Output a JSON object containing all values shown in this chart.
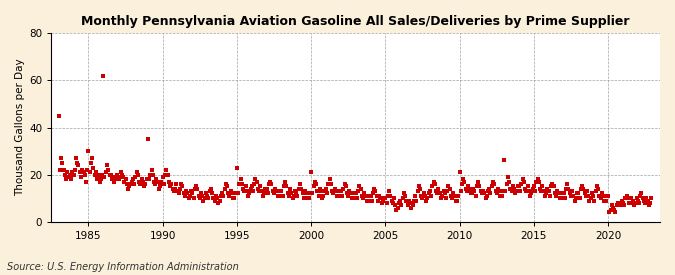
{
  "title": "Monthly Pennsylvania Aviation Gasoline All Sales/Deliveries by Prime Supplier",
  "ylabel": "Thousand Gallons per Day",
  "source": "Source: U.S. Energy Information Administration",
  "background_color": "#FAF0DC",
  "plot_bg_color": "#FFFFFF",
  "marker_color": "#CC0000",
  "xlim": [
    1982.5,
    2023.5
  ],
  "ylim": [
    0,
    80
  ],
  "yticks": [
    0,
    20,
    40,
    60,
    80
  ],
  "xticks": [
    1985,
    1990,
    1995,
    2000,
    2005,
    2010,
    2015,
    2020
  ],
  "x_values": [
    1983.0,
    1983.08,
    1983.17,
    1983.25,
    1983.33,
    1983.42,
    1983.5,
    1983.58,
    1983.67,
    1983.75,
    1983.83,
    1983.92,
    1984.0,
    1984.08,
    1984.17,
    1984.25,
    1984.33,
    1984.42,
    1984.5,
    1984.58,
    1984.67,
    1984.75,
    1984.83,
    1984.92,
    1985.0,
    1985.08,
    1985.17,
    1985.25,
    1985.33,
    1985.42,
    1985.5,
    1985.58,
    1985.67,
    1985.75,
    1985.83,
    1985.92,
    1986.0,
    1986.08,
    1986.17,
    1986.25,
    1986.33,
    1986.42,
    1986.5,
    1986.58,
    1986.67,
    1986.75,
    1986.83,
    1986.92,
    1987.0,
    1987.08,
    1987.17,
    1987.25,
    1987.33,
    1987.42,
    1987.5,
    1987.58,
    1987.67,
    1987.75,
    1987.83,
    1987.92,
    1988.0,
    1988.08,
    1988.17,
    1988.25,
    1988.33,
    1988.42,
    1988.5,
    1988.58,
    1988.67,
    1988.75,
    1988.83,
    1988.92,
    1989.0,
    1989.08,
    1989.17,
    1989.25,
    1989.33,
    1989.42,
    1989.5,
    1989.58,
    1989.67,
    1989.75,
    1989.83,
    1989.92,
    1990.0,
    1990.08,
    1990.17,
    1990.25,
    1990.33,
    1990.42,
    1990.5,
    1990.58,
    1990.67,
    1990.75,
    1990.83,
    1990.92,
    1991.0,
    1991.08,
    1991.17,
    1991.25,
    1991.33,
    1991.42,
    1991.5,
    1991.58,
    1991.67,
    1991.75,
    1991.83,
    1991.92,
    1992.0,
    1992.08,
    1992.17,
    1992.25,
    1992.33,
    1992.42,
    1992.5,
    1992.58,
    1992.67,
    1992.75,
    1992.83,
    1992.92,
    1993.0,
    1993.08,
    1993.17,
    1993.25,
    1993.33,
    1993.42,
    1993.5,
    1993.58,
    1993.67,
    1993.75,
    1993.83,
    1993.92,
    1994.0,
    1994.08,
    1994.17,
    1994.25,
    1994.33,
    1994.42,
    1994.5,
    1994.58,
    1994.67,
    1994.75,
    1994.83,
    1994.92,
    1995.0,
    1995.08,
    1995.17,
    1995.25,
    1995.33,
    1995.42,
    1995.5,
    1995.58,
    1995.67,
    1995.75,
    1995.83,
    1995.92,
    1996.0,
    1996.08,
    1996.17,
    1996.25,
    1996.33,
    1996.42,
    1996.5,
    1996.58,
    1996.67,
    1996.75,
    1996.83,
    1996.92,
    1997.0,
    1997.08,
    1997.17,
    1997.25,
    1997.33,
    1997.42,
    1997.5,
    1997.58,
    1997.67,
    1997.75,
    1997.83,
    1997.92,
    1998.0,
    1998.08,
    1998.17,
    1998.25,
    1998.33,
    1998.42,
    1998.5,
    1998.58,
    1998.67,
    1998.75,
    1998.83,
    1998.92,
    1999.0,
    1999.08,
    1999.17,
    1999.25,
    1999.33,
    1999.42,
    1999.5,
    1999.58,
    1999.67,
    1999.75,
    1999.83,
    1999.92,
    2000.0,
    2000.08,
    2000.17,
    2000.25,
    2000.33,
    2000.42,
    2000.5,
    2000.58,
    2000.67,
    2000.75,
    2000.83,
    2000.92,
    2001.0,
    2001.08,
    2001.17,
    2001.25,
    2001.33,
    2001.42,
    2001.5,
    2001.58,
    2001.67,
    2001.75,
    2001.83,
    2001.92,
    2002.0,
    2002.08,
    2002.17,
    2002.25,
    2002.33,
    2002.42,
    2002.5,
    2002.58,
    2002.67,
    2002.75,
    2002.83,
    2002.92,
    2003.0,
    2003.08,
    2003.17,
    2003.25,
    2003.33,
    2003.42,
    2003.5,
    2003.58,
    2003.67,
    2003.75,
    2003.83,
    2003.92,
    2004.0,
    2004.08,
    2004.17,
    2004.25,
    2004.33,
    2004.42,
    2004.5,
    2004.58,
    2004.67,
    2004.75,
    2004.83,
    2004.92,
    2005.0,
    2005.08,
    2005.17,
    2005.25,
    2005.33,
    2005.42,
    2005.5,
    2005.58,
    2005.67,
    2005.75,
    2005.83,
    2005.92,
    2006.0,
    2006.08,
    2006.17,
    2006.25,
    2006.33,
    2006.42,
    2006.5,
    2006.58,
    2006.67,
    2006.75,
    2006.83,
    2006.92,
    2007.0,
    2007.08,
    2007.17,
    2007.25,
    2007.33,
    2007.42,
    2007.5,
    2007.58,
    2007.67,
    2007.75,
    2007.83,
    2007.92,
    2008.0,
    2008.08,
    2008.17,
    2008.25,
    2008.33,
    2008.42,
    2008.5,
    2008.58,
    2008.67,
    2008.75,
    2008.83,
    2008.92,
    2009.0,
    2009.08,
    2009.17,
    2009.25,
    2009.33,
    2009.42,
    2009.5,
    2009.58,
    2009.67,
    2009.75,
    2009.83,
    2009.92,
    2010.0,
    2010.08,
    2010.17,
    2010.25,
    2010.33,
    2010.42,
    2010.5,
    2010.58,
    2010.67,
    2010.75,
    2010.83,
    2010.92,
    2011.0,
    2011.08,
    2011.17,
    2011.25,
    2011.33,
    2011.42,
    2011.5,
    2011.58,
    2011.67,
    2011.75,
    2011.83,
    2011.92,
    2012.0,
    2012.08,
    2012.17,
    2012.25,
    2012.33,
    2012.42,
    2012.5,
    2012.58,
    2012.67,
    2012.75,
    2012.83,
    2012.92,
    2013.0,
    2013.08,
    2013.17,
    2013.25,
    2013.33,
    2013.42,
    2013.5,
    2013.58,
    2013.67,
    2013.75,
    2013.83,
    2013.92,
    2014.0,
    2014.08,
    2014.17,
    2014.25,
    2014.33,
    2014.42,
    2014.5,
    2014.58,
    2014.67,
    2014.75,
    2014.83,
    2014.92,
    2015.0,
    2015.08,
    2015.17,
    2015.25,
    2015.33,
    2015.42,
    2015.5,
    2015.58,
    2015.67,
    2015.75,
    2015.83,
    2015.92,
    2016.0,
    2016.08,
    2016.17,
    2016.25,
    2016.33,
    2016.42,
    2016.5,
    2016.58,
    2016.67,
    2016.75,
    2016.83,
    2016.92,
    2017.0,
    2017.08,
    2017.17,
    2017.25,
    2017.33,
    2017.42,
    2017.5,
    2017.58,
    2017.67,
    2017.75,
    2017.83,
    2017.92,
    2018.0,
    2018.08,
    2018.17,
    2018.25,
    2018.33,
    2018.42,
    2018.5,
    2018.58,
    2018.67,
    2018.75,
    2018.83,
    2018.92,
    2019.0,
    2019.08,
    2019.17,
    2019.25,
    2019.33,
    2019.42,
    2019.5,
    2019.58,
    2019.67,
    2019.75,
    2019.83,
    2019.92,
    2020.0,
    2020.08,
    2020.17,
    2020.25,
    2020.33,
    2020.42,
    2020.5,
    2020.58,
    2020.67,
    2020.75,
    2020.83,
    2020.92,
    2021.0,
    2021.08,
    2021.17,
    2021.25,
    2021.33,
    2021.42,
    2021.5,
    2021.58,
    2021.67,
    2021.75,
    2021.83,
    2021.92,
    2022.0,
    2022.08,
    2022.17,
    2022.25,
    2022.33,
    2022.42,
    2022.5,
    2022.58,
    2022.67,
    2022.75,
    2022.83,
    2022.92
  ],
  "y_values": [
    45,
    22,
    27,
    25,
    22,
    20,
    18,
    21,
    19,
    20,
    18,
    21,
    20,
    22,
    27,
    25,
    24,
    21,
    19,
    22,
    21,
    20,
    17,
    22,
    30,
    21,
    25,
    27,
    23,
    20,
    21,
    18,
    20,
    17,
    18,
    20,
    62,
    19,
    21,
    24,
    22,
    20,
    20,
    18,
    19,
    17,
    18,
    20,
    19,
    18,
    21,
    20,
    19,
    17,
    18,
    16,
    14,
    15,
    16,
    17,
    18,
    16,
    19,
    21,
    20,
    17,
    16,
    18,
    17,
    15,
    16,
    18,
    35,
    18,
    20,
    22,
    20,
    17,
    16,
    18,
    17,
    14,
    15,
    17,
    19,
    16,
    20,
    22,
    20,
    17,
    15,
    16,
    14,
    13,
    14,
    16,
    13,
    12,
    14,
    16,
    15,
    12,
    11,
    13,
    12,
    10,
    11,
    13,
    12,
    10,
    14,
    15,
    14,
    11,
    10,
    12,
    11,
    9,
    10,
    12,
    11,
    10,
    13,
    14,
    12,
    10,
    9,
    11,
    10,
    8,
    9,
    11,
    12,
    11,
    14,
    16,
    15,
    12,
    11,
    13,
    12,
    10,
    10,
    12,
    23,
    12,
    16,
    18,
    16,
    14,
    13,
    15,
    13,
    11,
    12,
    14,
    15,
    13,
    16,
    18,
    17,
    14,
    13,
    15,
    13,
    11,
    12,
    14,
    14,
    12,
    16,
    17,
    16,
    13,
    12,
    14,
    13,
    11,
    11,
    13,
    13,
    11,
    15,
    17,
    15,
    12,
    11,
    14,
    12,
    10,
    11,
    13,
    12,
    11,
    14,
    16,
    14,
    12,
    10,
    13,
    12,
    10,
    10,
    12,
    21,
    12,
    15,
    17,
    16,
    13,
    11,
    14,
    13,
    10,
    11,
    13,
    14,
    12,
    16,
    18,
    16,
    13,
    12,
    14,
    13,
    11,
    11,
    13,
    13,
    11,
    14,
    16,
    15,
    12,
    11,
    13,
    12,
    10,
    10,
    12,
    12,
    10,
    13,
    15,
    14,
    11,
    10,
    12,
    11,
    9,
    9,
    11,
    11,
    9,
    12,
    14,
    13,
    11,
    9,
    11,
    10,
    8,
    9,
    10,
    10,
    8,
    11,
    13,
    11,
    9,
    8,
    10,
    7,
    5,
    6,
    8,
    9,
    7,
    10,
    12,
    11,
    9,
    7,
    9,
    8,
    6,
    7,
    9,
    11,
    9,
    13,
    15,
    14,
    11,
    10,
    12,
    11,
    9,
    10,
    12,
    13,
    11,
    15,
    17,
    16,
    13,
    12,
    14,
    12,
    10,
    11,
    13,
    12,
    10,
    13,
    15,
    14,
    11,
    10,
    12,
    11,
    9,
    9,
    11,
    21,
    13,
    16,
    18,
    17,
    14,
    13,
    15,
    14,
    12,
    12,
    14,
    13,
    11,
    15,
    17,
    15,
    13,
    12,
    13,
    12,
    10,
    11,
    13,
    14,
    12,
    15,
    17,
    16,
    13,
    12,
    14,
    13,
    11,
    11,
    13,
    26,
    13,
    16,
    19,
    17,
    14,
    13,
    15,
    14,
    12,
    13,
    15,
    15,
    13,
    16,
    18,
    17,
    14,
    13,
    15,
    13,
    11,
    12,
    14,
    15,
    13,
    17,
    18,
    17,
    14,
    13,
    15,
    13,
    11,
    12,
    14,
    13,
    11,
    15,
    16,
    15,
    12,
    11,
    13,
    12,
    10,
    10,
    12,
    12,
    10,
    14,
    16,
    14,
    12,
    11,
    13,
    11,
    9,
    10,
    12,
    12,
    10,
    14,
    15,
    14,
    12,
    11,
    13,
    11,
    9,
    10,
    12,
    11,
    9,
    13,
    15,
    14,
    11,
    10,
    12,
    11,
    9,
    9,
    11,
    11,
    4,
    5,
    7,
    6,
    5,
    4,
    7,
    8,
    7,
    7,
    9,
    8,
    7,
    10,
    11,
    10,
    8,
    8,
    10,
    9,
    7,
    8,
    10,
    9,
    8,
    11,
    12,
    10,
    9,
    8,
    10,
    9,
    7,
    8,
    10
  ]
}
